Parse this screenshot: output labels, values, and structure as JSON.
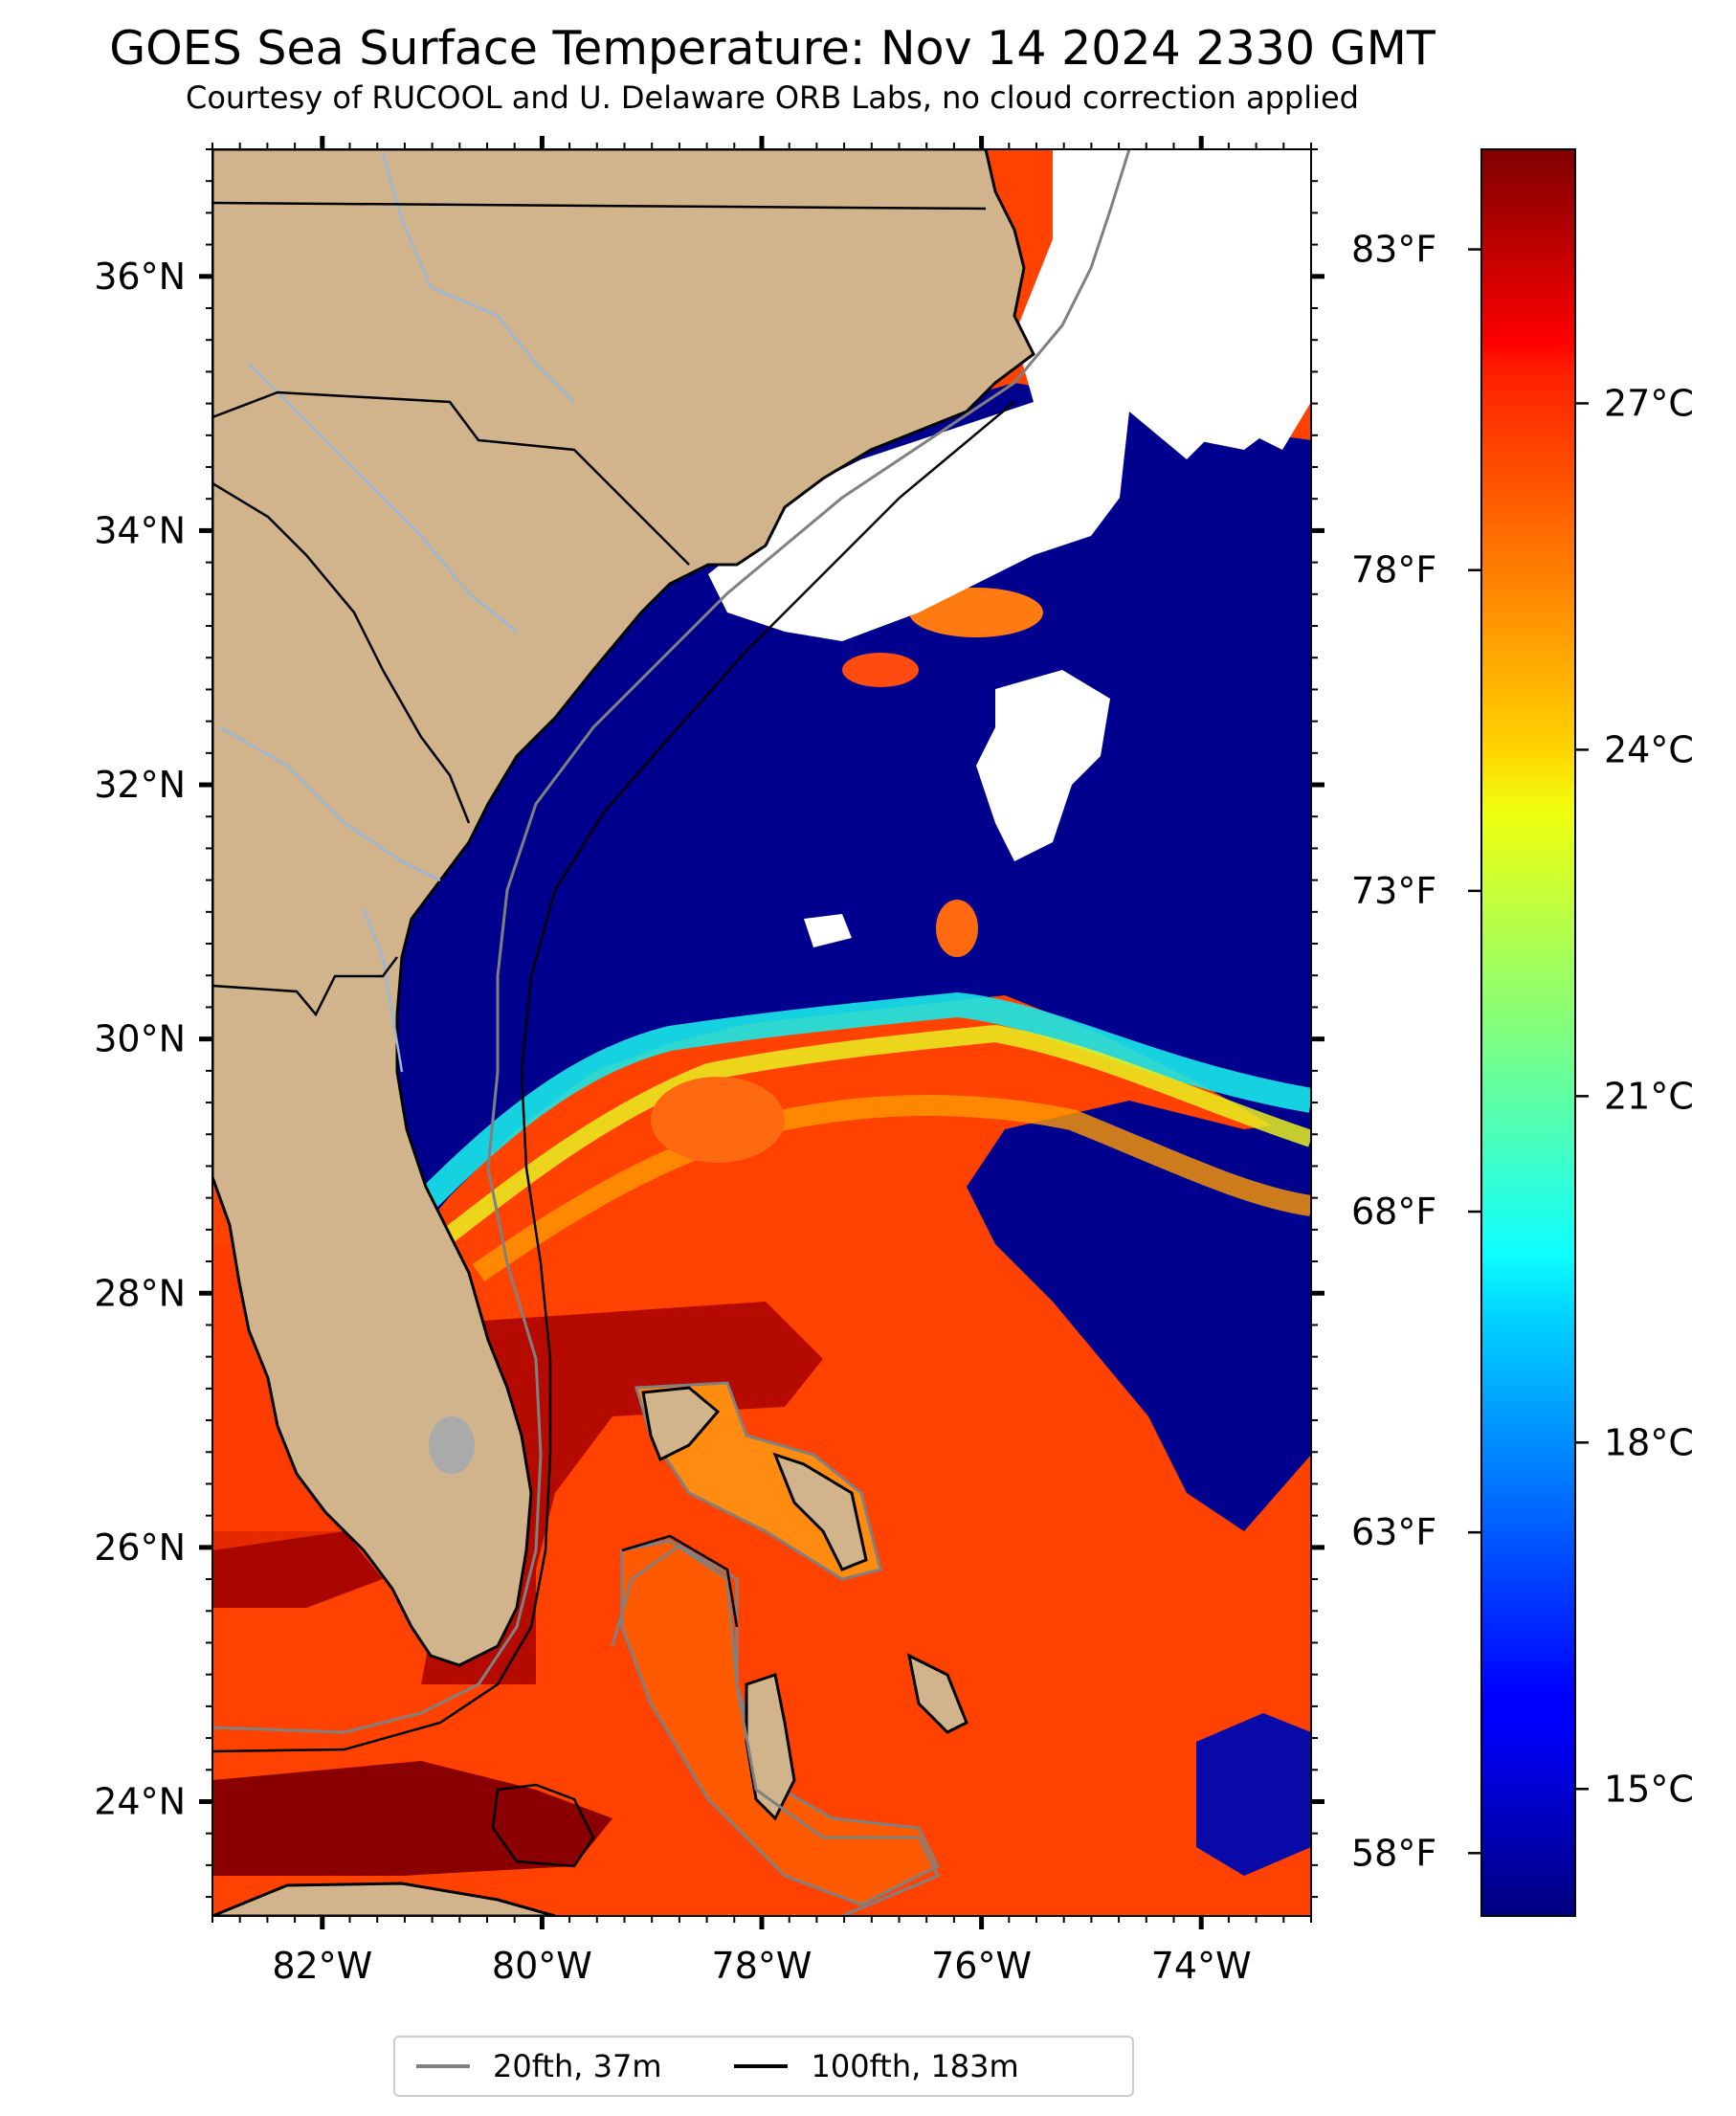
{
  "title": "GOES Sea Surface Temperature: Nov 14 2024 2330 GMT",
  "subtitle": "Courtesy of RUCOOL and U. Delaware ORB Labs, no cloud correction applied",
  "map": {
    "lon_range": [
      -83,
      -73
    ],
    "lat_range": [
      23.1,
      37.0
    ],
    "lon_ticks": [
      {
        "value": -82,
        "label": "82°W"
      },
      {
        "value": -80,
        "label": "80°W"
      },
      {
        "value": -78,
        "label": "78°W"
      },
      {
        "value": -76,
        "label": "76°W"
      },
      {
        "value": -74,
        "label": "74°W"
      }
    ],
    "lat_ticks": [
      {
        "value": 24,
        "label": "24°N"
      },
      {
        "value": 26,
        "label": "26°N"
      },
      {
        "value": 28,
        "label": "28°N"
      },
      {
        "value": 30,
        "label": "30°N"
      },
      {
        "value": 32,
        "label": "32°N"
      },
      {
        "value": 34,
        "label": "34°N"
      },
      {
        "value": 36,
        "label": "36°N"
      }
    ],
    "fahrenheit_ticks": [
      {
        "value": 58,
        "label": "58°F"
      },
      {
        "value": 63,
        "label": "63°F"
      },
      {
        "value": 68,
        "label": "68°F"
      },
      {
        "value": 73,
        "label": "73°F"
      },
      {
        "value": 78,
        "label": "78°F"
      },
      {
        "value": 83,
        "label": "83°F"
      }
    ],
    "colors": {
      "land": "#d2b48c",
      "cloud": "#ffffff",
      "lake": "#aaaaaa",
      "river": "#9ab6d8",
      "contour_20fth": "#808080",
      "contour_100fth": "#000000"
    }
  },
  "colorbar": {
    "celsius_range": [
      13.9,
      29.2
    ],
    "celsius_ticks": [
      {
        "value": 15,
        "label": "15°C"
      },
      {
        "value": 18,
        "label": "18°C"
      },
      {
        "value": 21,
        "label": "21°C"
      },
      {
        "value": 24,
        "label": "24°C"
      },
      {
        "value": 27,
        "label": "27°C"
      }
    ],
    "colormap": "jet"
  },
  "legend": {
    "items": [
      {
        "label": "20fth, 37m",
        "color": "#808080"
      },
      {
        "label": "100fth, 183m",
        "color": "#000000"
      }
    ]
  }
}
